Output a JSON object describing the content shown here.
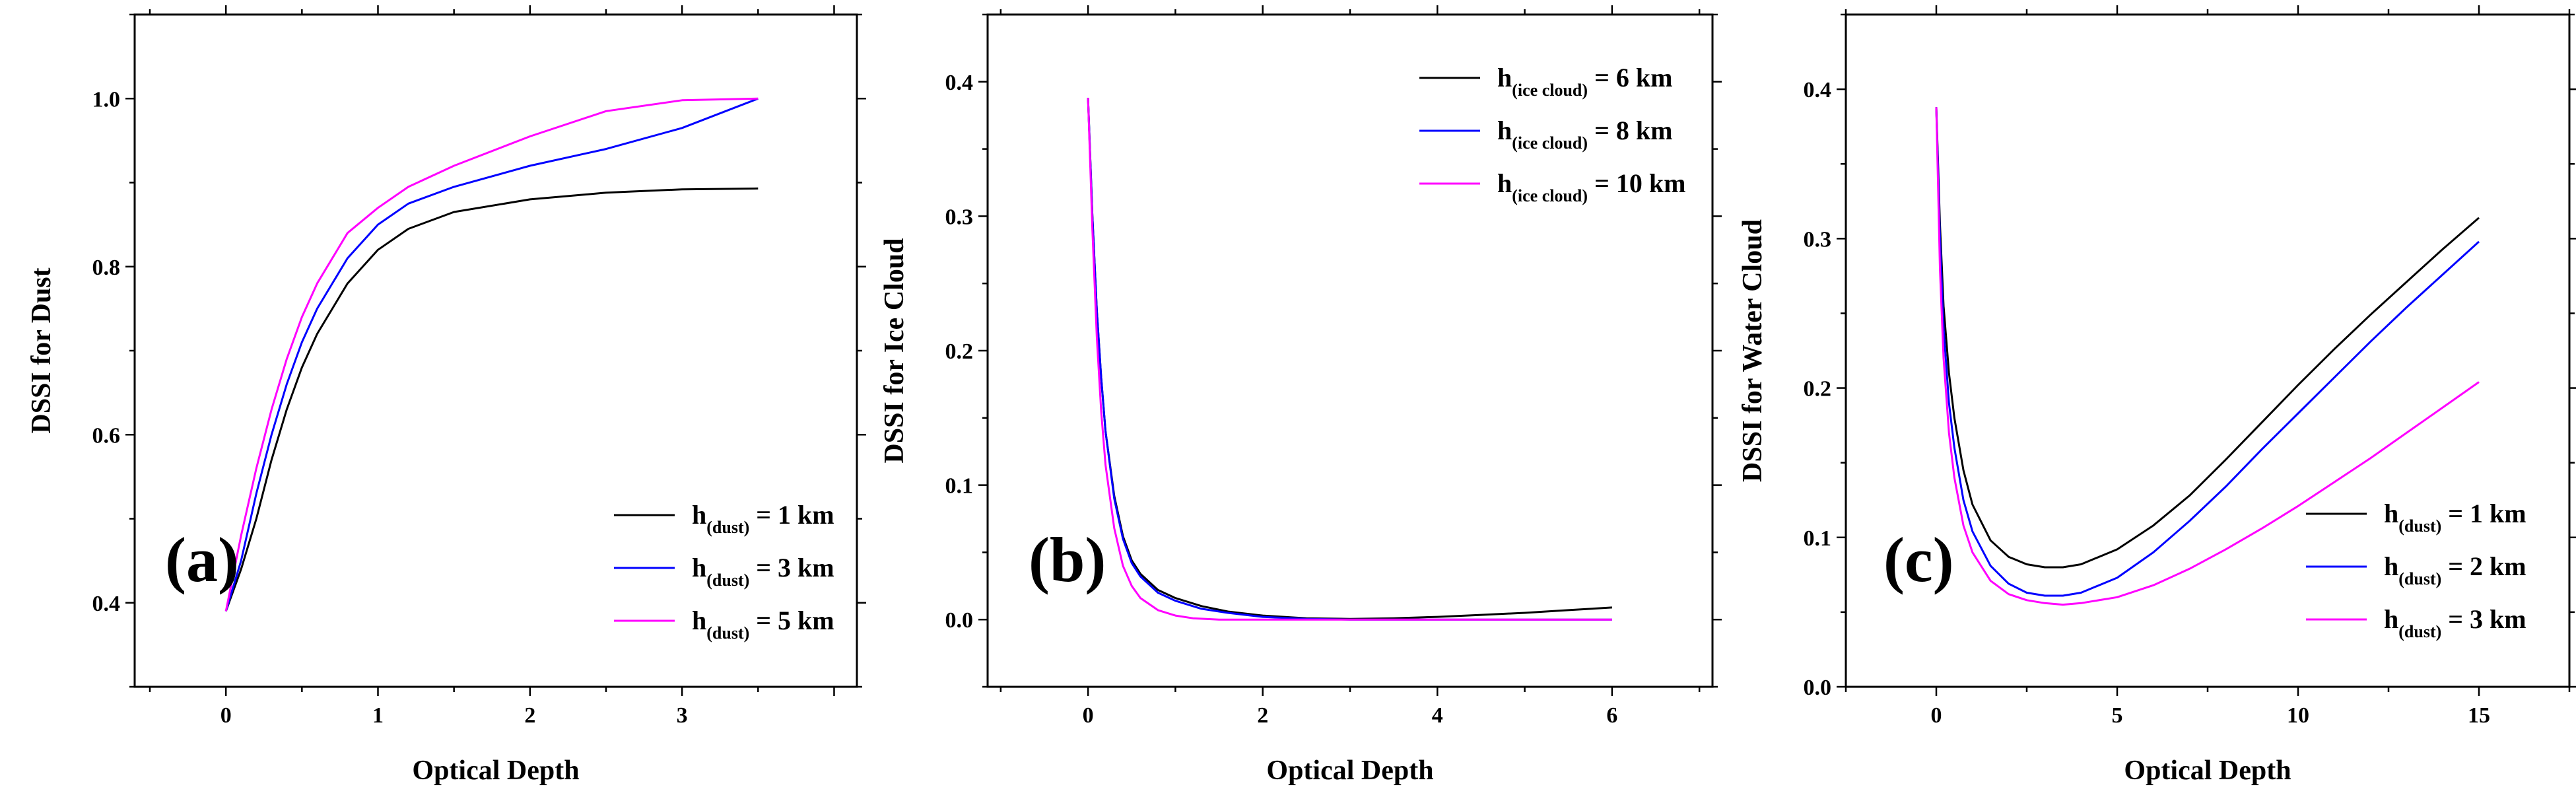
{
  "chart_data": [
    {
      "type": "line",
      "panel_label": "(a)",
      "xlabel": "Optical Depth",
      "ylabel": "DSSI for Dust",
      "xlim": [
        -0.6,
        4.15
      ],
      "ylim": [
        0.3,
        1.1
      ],
      "xticks": [
        0,
        1,
        2,
        3
      ],
      "xtick_labels": [
        "0",
        "1",
        "2",
        "3"
      ],
      "yticks": [
        0.4,
        0.6,
        0.8,
        1.0
      ],
      "ytick_labels": [
        "0.4",
        "0.6",
        "0.8",
        "1.0"
      ],
      "legend_position": "bottom-right",
      "series": [
        {
          "name_main": "h",
          "name_sub": "(dust)",
          "name_tail": " = 1 km",
          "color": "#000000",
          "x": [
            0,
            0.1,
            0.2,
            0.3,
            0.4,
            0.5,
            0.6,
            0.8,
            1.0,
            1.2,
            1.5,
            2.0,
            2.5,
            3.0,
            3.5
          ],
          "y": [
            0.39,
            0.44,
            0.5,
            0.57,
            0.63,
            0.68,
            0.72,
            0.78,
            0.82,
            0.845,
            0.865,
            0.88,
            0.888,
            0.892,
            0.893
          ]
        },
        {
          "name_main": "h",
          "name_sub": "(dust)",
          "name_tail": " = 3 km",
          "color": "#0000ff",
          "x": [
            0,
            0.1,
            0.2,
            0.3,
            0.4,
            0.5,
            0.6,
            0.8,
            1.0,
            1.2,
            1.5,
            2.0,
            2.5,
            3.0,
            3.5
          ],
          "y": [
            0.39,
            0.45,
            0.53,
            0.6,
            0.66,
            0.71,
            0.75,
            0.81,
            0.85,
            0.875,
            0.895,
            0.92,
            0.94,
            0.965,
            1.0
          ]
        },
        {
          "name_main": "h",
          "name_sub": "(dust)",
          "name_tail": " = 5 km",
          "color": "#ff00ff",
          "x": [
            0,
            0.1,
            0.2,
            0.3,
            0.4,
            0.5,
            0.6,
            0.8,
            1.0,
            1.2,
            1.5,
            2.0,
            2.5,
            3.0,
            3.5
          ],
          "y": [
            0.39,
            0.48,
            0.56,
            0.63,
            0.69,
            0.74,
            0.78,
            0.84,
            0.87,
            0.895,
            0.92,
            0.955,
            0.985,
            0.998,
            1.0
          ]
        }
      ]
    },
    {
      "type": "line",
      "panel_label": "(b)",
      "xlabel": "Optical Depth",
      "ylabel": "DSSI for Ice Cloud",
      "xlim": [
        -1.15,
        7.15
      ],
      "ylim": [
        -0.05,
        0.45
      ],
      "xticks": [
        0,
        2,
        4,
        6
      ],
      "xtick_labels": [
        "0",
        "2",
        "4",
        "6"
      ],
      "yticks": [
        0.0,
        0.1,
        0.2,
        0.3,
        0.4
      ],
      "ytick_labels": [
        "0.0",
        "0.1",
        "0.2",
        "0.3",
        "0.4"
      ],
      "legend_position": "top-right",
      "series": [
        {
          "name_main": "h",
          "name_sub": "(ice cloud)",
          "name_tail": " = 6 km",
          "color": "#000000",
          "x": [
            0,
            0.05,
            0.1,
            0.15,
            0.2,
            0.3,
            0.4,
            0.5,
            0.6,
            0.8,
            1.0,
            1.3,
            1.6,
            2.0,
            2.5,
            3.0,
            3.5,
            4.0,
            4.5,
            5.0,
            5.5,
            6.0
          ],
          "y": [
            0.388,
            0.3,
            0.23,
            0.18,
            0.14,
            0.092,
            0.062,
            0.044,
            0.034,
            0.022,
            0.016,
            0.01,
            0.006,
            0.003,
            0.001,
            0.0005,
            0.001,
            0.002,
            0.0035,
            0.005,
            0.007,
            0.009
          ]
        },
        {
          "name_main": "h",
          "name_sub": "(ice cloud)",
          "name_tail": " = 8 km",
          "color": "#0000ff",
          "x": [
            0,
            0.05,
            0.1,
            0.15,
            0.2,
            0.3,
            0.4,
            0.5,
            0.6,
            0.8,
            1.0,
            1.3,
            1.6,
            2.0,
            2.5,
            3.0,
            4.0,
            5.0,
            6.0
          ],
          "y": [
            0.388,
            0.3,
            0.23,
            0.18,
            0.14,
            0.09,
            0.06,
            0.042,
            0.032,
            0.02,
            0.014,
            0.008,
            0.005,
            0.002,
            0.0005,
            0.0,
            0.0,
            0.0,
            0.0
          ]
        },
        {
          "name_main": "h",
          "name_sub": "(ice cloud)",
          "name_tail": " = 10 km",
          "color": "#ff00ff",
          "x": [
            0,
            0.05,
            0.1,
            0.15,
            0.2,
            0.3,
            0.4,
            0.5,
            0.6,
            0.8,
            1.0,
            1.2,
            1.5,
            2.0,
            3.0,
            4.0,
            5.0,
            6.0
          ],
          "y": [
            0.388,
            0.29,
            0.21,
            0.155,
            0.115,
            0.068,
            0.04,
            0.025,
            0.016,
            0.007,
            0.003,
            0.001,
            0.0,
            0.0,
            0.0,
            0.0,
            0.0,
            0.0
          ]
        }
      ]
    },
    {
      "type": "line",
      "panel_label": "(c)",
      "xlabel": "Optical Depth",
      "ylabel": "DSSI for Water Cloud",
      "xlim": [
        -2.5,
        17.5
      ],
      "ylim": [
        0.0,
        0.45
      ],
      "xticks": [
        0,
        5,
        10,
        15
      ],
      "xtick_labels": [
        "0",
        "5",
        "10",
        "15"
      ],
      "yticks": [
        0.0,
        0.1,
        0.2,
        0.3,
        0.4
      ],
      "ytick_labels": [
        "0.0",
        "0.1",
        "0.2",
        "0.3",
        "0.4"
      ],
      "legend_position": "bottom-right",
      "series": [
        {
          "name_main": "h",
          "name_sub": "(dust)",
          "name_tail": " = 1 km",
          "color": "#000000",
          "x": [
            0,
            0.1,
            0.2,
            0.35,
            0.5,
            0.75,
            1.0,
            1.5,
            2.0,
            2.5,
            3.0,
            3.5,
            4.0,
            5.0,
            6.0,
            7.0,
            8.0,
            9.0,
            10.0,
            11.0,
            12.0,
            13.0,
            14.0,
            15.0
          ],
          "y": [
            0.388,
            0.31,
            0.255,
            0.21,
            0.18,
            0.145,
            0.122,
            0.098,
            0.087,
            0.082,
            0.08,
            0.08,
            0.082,
            0.092,
            0.108,
            0.128,
            0.152,
            0.177,
            0.202,
            0.226,
            0.249,
            0.271,
            0.293,
            0.314
          ]
        },
        {
          "name_main": "h",
          "name_sub": "(dust)",
          "name_tail": " = 2 km",
          "color": "#0000ff",
          "x": [
            0,
            0.1,
            0.2,
            0.35,
            0.5,
            0.75,
            1.0,
            1.5,
            2.0,
            2.5,
            3.0,
            3.5,
            4.0,
            5.0,
            6.0,
            7.0,
            8.0,
            9.0,
            10.0,
            11.0,
            12.0,
            13.0,
            14.0,
            15.0
          ],
          "y": [
            0.388,
            0.3,
            0.24,
            0.19,
            0.16,
            0.125,
            0.104,
            0.081,
            0.069,
            0.063,
            0.061,
            0.061,
            0.063,
            0.073,
            0.09,
            0.111,
            0.134,
            0.159,
            0.183,
            0.207,
            0.231,
            0.254,
            0.276,
            0.298
          ]
        },
        {
          "name_main": "h",
          "name_sub": "(dust)",
          "name_tail": " = 3 km",
          "color": "#ff00ff",
          "x": [
            0,
            0.1,
            0.2,
            0.35,
            0.5,
            0.75,
            1.0,
            1.5,
            2.0,
            2.5,
            3.0,
            3.5,
            4.0,
            5.0,
            6.0,
            7.0,
            8.0,
            9.0,
            10.0,
            11.0,
            12.0,
            13.0,
            14.0,
            15.0
          ],
          "y": [
            0.388,
            0.28,
            0.22,
            0.17,
            0.14,
            0.108,
            0.09,
            0.071,
            0.062,
            0.058,
            0.056,
            0.055,
            0.056,
            0.06,
            0.068,
            0.079,
            0.092,
            0.106,
            0.121,
            0.137,
            0.153,
            0.17,
            0.187,
            0.204
          ]
        }
      ]
    }
  ]
}
